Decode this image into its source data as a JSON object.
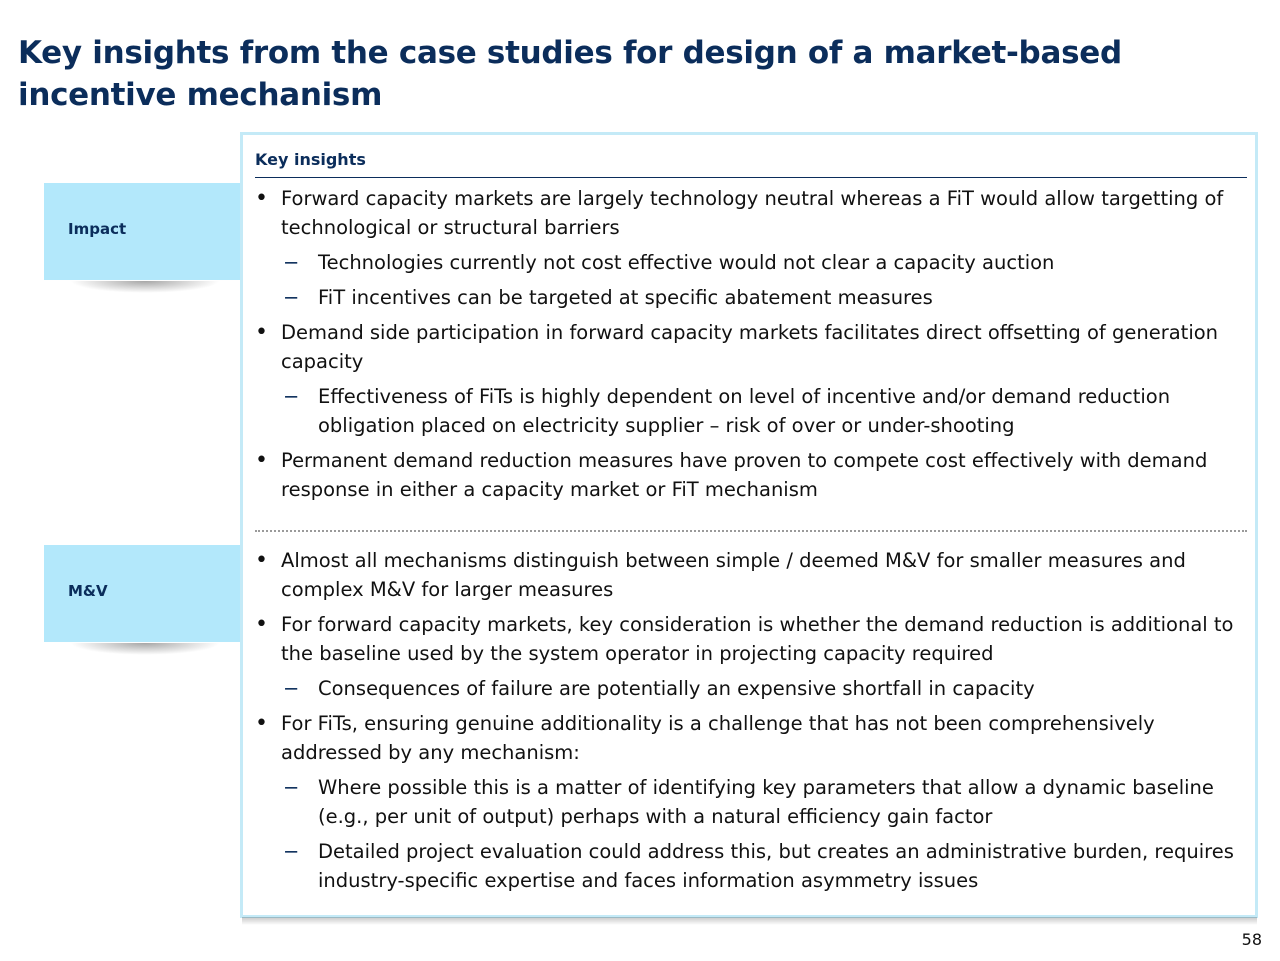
{
  "title": "Key insights from the case studies for design of a market-based incentive mechanism",
  "panel_header": "Key insights",
  "labels": {
    "impact": "Impact",
    "mv": "M&V"
  },
  "markers": {
    "bullet": "•",
    "dash": "−"
  },
  "sections": {
    "impact": [
      "Forward capacity markets are largely technology neutral whereas a FiT would allow targetting of technological or structural barriers",
      "Technologies currently not cost effective would not clear a capacity auction",
      "FiT incentives can be targeted at specific abatement measures",
      "Demand side participation in forward capacity markets facilitates direct offsetting of generation capacity",
      "Effectiveness of FiTs is highly dependent on level of incentive and/or demand reduction obligation placed on electricity supplier – risk of over or under-shooting",
      "Permanent demand reduction measures have proven to compete cost effectively with demand response in either a capacity market or FiT mechanism"
    ],
    "mv": [
      "Almost all mechanisms distinguish between simple / deemed M&V for smaller measures and complex M&V for larger measures",
      "For forward capacity markets, key consideration is whether the demand reduction is additional to the baseline used by the system operator in projecting capacity required",
      "Consequences of failure are potentially an expensive shortfall in capacity",
      "For FiTs, ensuring genuine additionality is a challenge that has not been comprehensively addressed by any mechanism:",
      "Where possible this is a matter of identifying key parameters that allow a dynamic baseline (e.g., per unit of output) perhaps with a natural efficiency gain factor",
      "Detailed project evaluation could address this, but creates an administrative burden, requires industry-specific expertise and faces information asymmetry issues"
    ]
  },
  "page_number": "58"
}
